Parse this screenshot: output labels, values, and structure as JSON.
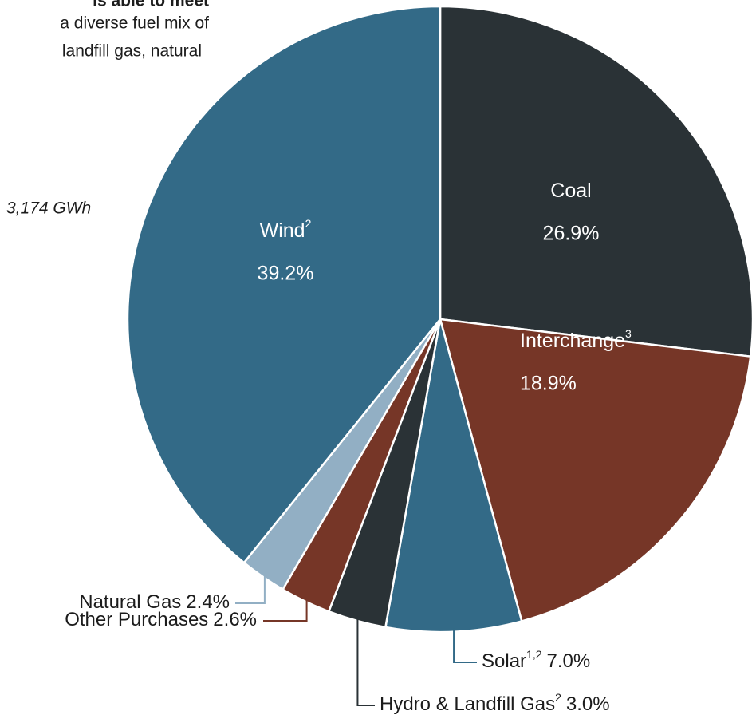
{
  "notes": [
    "is able to meet",
    "a diverse fuel mix of",
    "landfill gas, natural"
  ],
  "total": "3,174 GWh",
  "chart_data": {
    "type": "pie",
    "categories": [
      "Coal",
      "Interchange",
      "Solar",
      "Hydro & Landfill Gas",
      "Other Purchases",
      "Natural Gas",
      "Wind"
    ],
    "footnotes": [
      null,
      "3",
      "1,2",
      "2",
      null,
      null,
      "2"
    ],
    "values": [
      26.9,
      18.9,
      7.0,
      3.0,
      2.6,
      2.4,
      39.2
    ],
    "value_labels": [
      "26.9%",
      "18.9%",
      "7.0%",
      "3.0%",
      "2.6%",
      "2.4%",
      "39.2%"
    ],
    "colors": [
      "#2a3236",
      "#763627",
      "#336a87",
      "#2a3236",
      "#763627",
      "#92afc4",
      "#336a87"
    ]
  }
}
